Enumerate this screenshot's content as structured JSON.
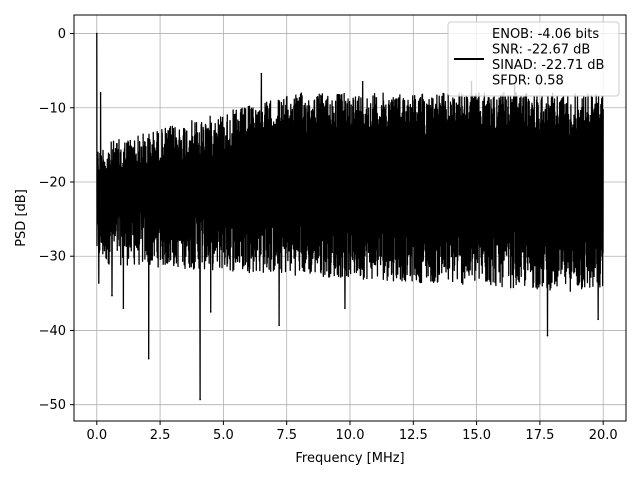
{
  "chart_data": {
    "type": "line",
    "title": "",
    "xlabel": "Frequency [MHz]",
    "ylabel": "PSD [dB]",
    "xlim": [
      -0.9,
      20.9
    ],
    "ylim": [
      -52.2,
      2.5
    ],
    "x_ticks": [
      0.0,
      2.5,
      5.0,
      7.5,
      10.0,
      12.5,
      15.0,
      17.5,
      20.0
    ],
    "x_tick_labels": [
      "0.0",
      "2.5",
      "5.0",
      "7.5",
      "10.0",
      "12.5",
      "15.0",
      "17.5",
      "20.0"
    ],
    "y_ticks": [
      0,
      -10,
      -20,
      -30,
      -40,
      -50
    ],
    "y_tick_labels": [
      "0",
      "−10",
      "−20",
      "−30",
      "−40",
      "−50"
    ],
    "grid": true,
    "legend_position": "top-right",
    "series_color": "#000000",
    "series": [
      {
        "name": "ENOB: -4.06 bits\nSNR: -22.67 dB\nSINAD: -22.71 dB\nSFDR: 0.58",
        "legend_lines": [
          "ENOB: -4.06 bits",
          "SNR: -22.67 dB",
          "SINAD: -22.71 dB",
          "SFDR: 0.58"
        ],
        "spikes": [
          {
            "x": 0.0,
            "y": 0.0
          },
          {
            "x": 0.05,
            "y": -17.0
          },
          {
            "x": 0.08,
            "y": -33.6
          },
          {
            "x": 0.15,
            "y": -8.0
          },
          {
            "x": 0.6,
            "y": -35.3
          },
          {
            "x": 1.05,
            "y": -37.0
          },
          {
            "x": 2.05,
            "y": -43.8
          },
          {
            "x": 4.08,
            "y": -49.3
          },
          {
            "x": 4.5,
            "y": -37.5
          },
          {
            "x": 7.2,
            "y": -39.3
          },
          {
            "x": 6.5,
            "y": -5.4
          },
          {
            "x": 9.8,
            "y": -37.0
          },
          {
            "x": 10.5,
            "y": -6.5
          },
          {
            "x": 14.8,
            "y": -6.5
          },
          {
            "x": 16.5,
            "y": -6.8
          },
          {
            "x": 17.8,
            "y": -40.7
          },
          {
            "x": 19.8,
            "y": -38.5
          }
        ],
        "envelope": {
          "upper_start": -15.0,
          "upper_end": -8.0,
          "lower_start": -31.0,
          "lower_end": -35.0
        }
      }
    ]
  }
}
